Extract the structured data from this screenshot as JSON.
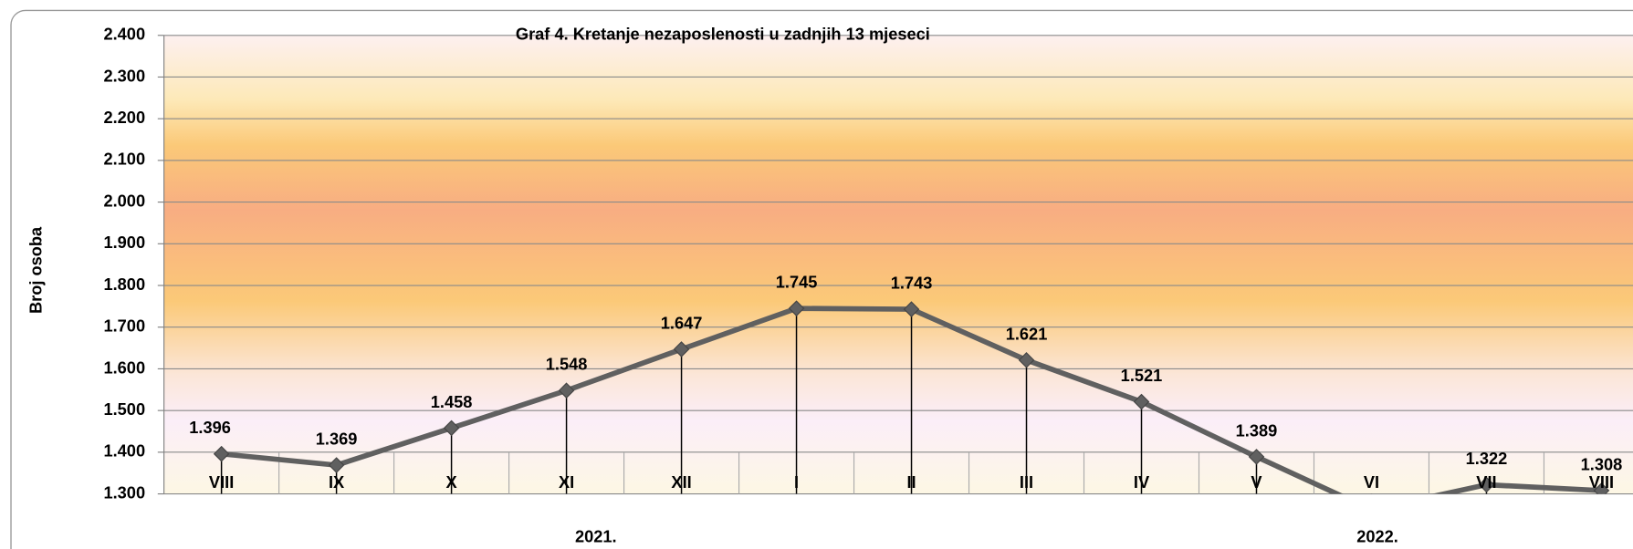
{
  "chart_data": {
    "type": "line",
    "title": "Graf 4. Kretanje nezaposlenosti u zadnjih 13 mjeseci",
    "y_label": "Broj osoba",
    "categories": [
      "VIII",
      "IX",
      "X",
      "XI",
      "XII",
      "I",
      "II",
      "III",
      "IV",
      "V",
      "VI",
      "VII",
      "VIII"
    ],
    "groups": [
      "2021.",
      "2022."
    ],
    "series": [
      {
        "name": "Broj osoba",
        "color": "#606060",
        "values": [
          1396,
          1369,
          1458,
          1548,
          1647,
          1745,
          1743,
          1621,
          1521,
          1389,
          1262,
          1322,
          1308
        ],
        "value_labels": [
          "1.396",
          "1.369",
          "1.458",
          "1.548",
          "1.647",
          "1.745",
          "1.743",
          "1.621",
          "1.521",
          "1.389",
          null,
          "1.322",
          "1.308"
        ]
      }
    ],
    "ylim": [
      1300,
      2400
    ],
    "yticks": [
      {
        "value": 1300,
        "label": "1.300"
      },
      {
        "value": 1400,
        "label": "1.400"
      },
      {
        "value": 1500,
        "label": "1.500"
      },
      {
        "value": 1600,
        "label": "1.600"
      },
      {
        "value": 1700,
        "label": "1.700"
      },
      {
        "value": 1800,
        "label": "1.800"
      },
      {
        "value": 1900,
        "label": "1.900"
      },
      {
        "value": 2000,
        "label": "2.000"
      },
      {
        "value": 2100,
        "label": "2.100"
      },
      {
        "value": 2200,
        "label": "2.200"
      },
      {
        "value": 2300,
        "label": "2.300"
      },
      {
        "value": 2400,
        "label": "2.400"
      }
    ],
    "grid": true
  }
}
